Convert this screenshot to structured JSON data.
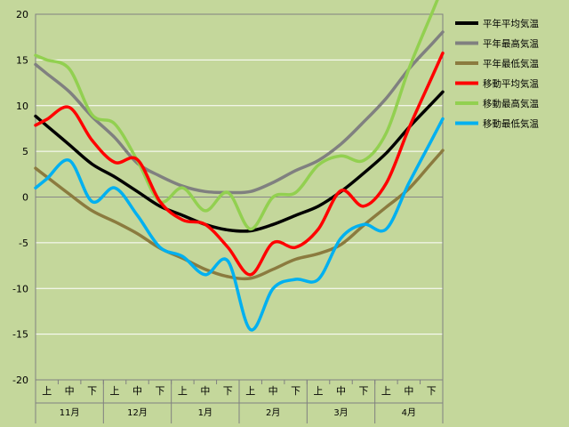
{
  "chart_data": {
    "type": "line",
    "title": "",
    "xlabel": "",
    "ylabel": "",
    "ylim": [
      -20,
      20
    ],
    "yticks": [
      -20,
      -15,
      -10,
      -5,
      0,
      5,
      10,
      15,
      20
    ],
    "grid": true,
    "legend_position": "right",
    "months": [
      "11月",
      "12月",
      "1月",
      "2月",
      "3月",
      "4月"
    ],
    "decades": [
      "上",
      "中",
      "下"
    ],
    "x_points": [
      "11月上",
      "11月中",
      "11月下",
      "12月上",
      "12月中",
      "12月下",
      "1月上",
      "1月中",
      "1月下",
      "2月上",
      "2月中",
      "2月下",
      "3月上",
      "3月中",
      "3月下",
      "4月上",
      "4月中",
      "4月下"
    ],
    "series": [
      {
        "name": "平年平均気温",
        "color": "#000000",
        "values": [
          7.8,
          5.7,
          3.6,
          2.2,
          0.6,
          -1.0,
          -2.0,
          -3.0,
          -3.6,
          -3.7,
          -3.0,
          -2.0,
          -1.0,
          0.6,
          2.6,
          4.8,
          7.6,
          10.2
        ]
      },
      {
        "name": "平年最高気温",
        "color": "#808080",
        "values": [
          13.5,
          11.5,
          8.8,
          6.5,
          3.7,
          2.3,
          1.2,
          0.6,
          0.5,
          0.6,
          1.6,
          2.9,
          4.0,
          5.8,
          8.2,
          10.8,
          14.0,
          16.7
        ]
      },
      {
        "name": "平年最低気温",
        "color": "#8b7b3f",
        "values": [
          2.2,
          0.3,
          -1.5,
          -2.7,
          -4.0,
          -5.6,
          -6.7,
          -7.9,
          -8.7,
          -8.9,
          -7.9,
          -6.8,
          -6.2,
          -5.2,
          -3.1,
          -1.1,
          0.9,
          3.7
        ]
      },
      {
        "name": "移動平均気温",
        "color": "#ff0000",
        "values": [
          8.5,
          9.8,
          6.2,
          3.8,
          4.1,
          -0.5,
          -2.5,
          -3.0,
          -5.5,
          -8.5,
          -5.0,
          -5.5,
          -3.5,
          0.7,
          -1.0,
          1.5,
          7.5,
          13.0
        ]
      },
      {
        "name": "移動最高気温",
        "color": "#92d050",
        "values": [
          15.0,
          14.0,
          9.0,
          8.0,
          4.0,
          -0.5,
          1.0,
          -1.5,
          0.5,
          -3.5,
          0.0,
          0.5,
          3.5,
          4.5,
          4.0,
          7.0,
          14.0,
          20.0
        ]
      },
      {
        "name": "移動最低気温",
        "color": "#00b0f0",
        "values": [
          2.0,
          4.0,
          -0.5,
          1.0,
          -2.0,
          -5.5,
          -6.5,
          -8.5,
          -7.0,
          -14.5,
          -10.0,
          -9.0,
          -9.0,
          -4.5,
          -3.0,
          -3.5,
          1.5,
          6.2
        ]
      }
    ]
  }
}
